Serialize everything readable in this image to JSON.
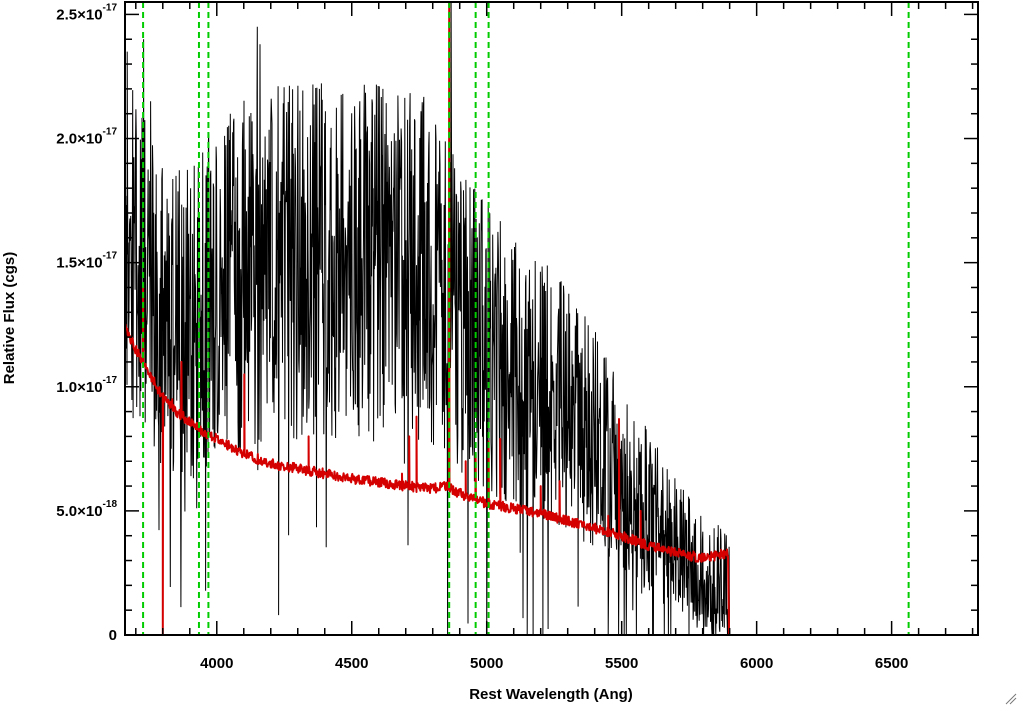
{
  "chart_data": {
    "type": "line",
    "xlabel": "Rest Wavelength (Ang)",
    "ylabel": "Relative Flux (cgs)",
    "xlim": [
      3660,
      6820
    ],
    "ylim": [
      0,
      2.55e-17
    ],
    "x_ticks": [
      4000,
      4500,
      5000,
      5500,
      6000,
      6500
    ],
    "x_tick_labels": [
      "4000",
      "4500",
      "5000",
      "5500",
      "6000",
      "6500"
    ],
    "y_ticks": [
      {
        "value": 0,
        "mant": "0",
        "exp": ""
      },
      {
        "value": 5e-18,
        "mant": "5.0×10",
        "exp": "-18"
      },
      {
        "value": 1e-17,
        "mant": "1.0×10",
        "exp": "-17"
      },
      {
        "value": 1.5e-17,
        "mant": "1.5×10",
        "exp": "-17"
      },
      {
        "value": 2e-17,
        "mant": "2.0×10",
        "exp": "-17"
      },
      {
        "value": 2.5e-17,
        "mant": "2.5×10",
        "exp": "-17"
      }
    ],
    "grid": false,
    "legend": "none",
    "colors": {
      "observed": "#000000",
      "model": "#d40000",
      "marker_lines": "#00cc00"
    },
    "marker_lines": [
      3727,
      3934,
      3969,
      4861,
      4959,
      5007,
      6563
    ],
    "series": [
      {
        "key": "observed",
        "style": "noisy",
        "envelope_x": [
          3660,
          3700,
          3750,
          3800,
          3850,
          3900,
          3950,
          4000,
          4100,
          4200,
          4300,
          4400,
          4500,
          4600,
          4700,
          4800,
          4900,
          5000,
          5100,
          5200,
          5300,
          5400,
          5500,
          5600,
          5700,
          5800,
          5880,
          5900
        ],
        "envelope_y": [
          1.55e-17,
          1.45e-17,
          1.4e-17,
          1.3e-17,
          1.25e-17,
          1.25e-17,
          1.3e-17,
          1.38e-17,
          1.45e-17,
          1.5e-17,
          1.5e-17,
          1.5e-17,
          1.5e-17,
          1.5e-17,
          1.5e-17,
          1.5e-17,
          1.25e-17,
          1.15e-17,
          1.05e-17,
          1e-17,
          9e-18,
          8e-18,
          6.5e-18,
          5e-18,
          3.5e-18,
          2.5e-18,
          2.2e-18,
          2e-18
        ],
        "amplitude": 5.5e-18,
        "spikes": [
          {
            "x": 3668,
            "y": 2.35e-17
          },
          {
            "x": 3729,
            "y": 2.4e-17
          },
          {
            "x": 3755,
            "y": 2.15e-17
          },
          {
            "x": 3970,
            "y": 2.02e-17
          },
          {
            "x": 4050,
            "y": 2.1e-17
          },
          {
            "x": 4150,
            "y": 2.45e-17
          },
          {
            "x": 4160,
            "y": 2.38e-17
          },
          {
            "x": 4380,
            "y": 2.2e-17
          },
          {
            "x": 4530,
            "y": 2.15e-17
          },
          {
            "x": 4229,
            "y": 8e-19
          },
          {
            "x": 4855,
            "y": 0.0
          },
          {
            "x": 4868,
            "y": 2.55e-17
          },
          {
            "x": 5000,
            "y": 0.0
          },
          {
            "x": 5150,
            "y": 0.0
          },
          {
            "x": 5450,
            "y": 0.0
          }
        ]
      },
      {
        "key": "model",
        "style": "smooth",
        "x": [
          3660,
          3700,
          3750,
          3800,
          3850,
          3900,
          3950,
          4000,
          4050,
          4100,
          4150,
          4200,
          4300,
          4400,
          4500,
          4600,
          4700,
          4800,
          4850,
          4900,
          5000,
          5100,
          5200,
          5300,
          5400,
          5500,
          5600,
          5700,
          5800,
          5895,
          5897,
          6820
        ],
        "y": [
          1.24e-17,
          1.15e-17,
          1.05e-17,
          9.6e-18,
          9e-18,
          8.6e-18,
          8.2e-18,
          7.9e-18,
          7.6e-18,
          7.3e-18,
          7.1e-18,
          6.9e-18,
          6.7e-18,
          6.5e-18,
          6.3e-18,
          6.15e-18,
          6e-18,
          5.9e-18,
          6e-18,
          5.7e-18,
          5.3e-18,
          5.1e-18,
          4.9e-18,
          4.6e-18,
          4.3e-18,
          4e-18,
          3.6e-18,
          3.3e-18,
          3.1e-18,
          3.3e-18,
          0.0,
          0.0
        ],
        "emission": [
          {
            "x": 3727,
            "y": 1.4e-17
          },
          {
            "x": 3800,
            "y": 0.0
          },
          {
            "x": 3835,
            "y": 9.5e-18
          },
          {
            "x": 3869,
            "y": 1.1e-17
          },
          {
            "x": 4102,
            "y": 1.05e-17
          },
          {
            "x": 4340,
            "y": 8e-18
          },
          {
            "x": 4686,
            "y": 6.5e-18
          },
          {
            "x": 4713,
            "y": 8e-18
          },
          {
            "x": 4740,
            "y": 8.8e-18
          },
          {
            "x": 4861,
            "y": 2.55e-17
          },
          {
            "x": 4922,
            "y": 7e-18
          },
          {
            "x": 4959,
            "y": 7.3e-18
          },
          {
            "x": 5007,
            "y": 7.8e-18
          },
          {
            "x": 5050,
            "y": 7.9e-18
          },
          {
            "x": 5200,
            "y": 6e-18
          },
          {
            "x": 5270,
            "y": 6.2e-18
          },
          {
            "x": 5450,
            "y": 4.8e-18
          },
          {
            "x": 5490,
            "y": 8.7e-18
          },
          {
            "x": 5570,
            "y": 5e-18
          }
        ]
      }
    ]
  }
}
